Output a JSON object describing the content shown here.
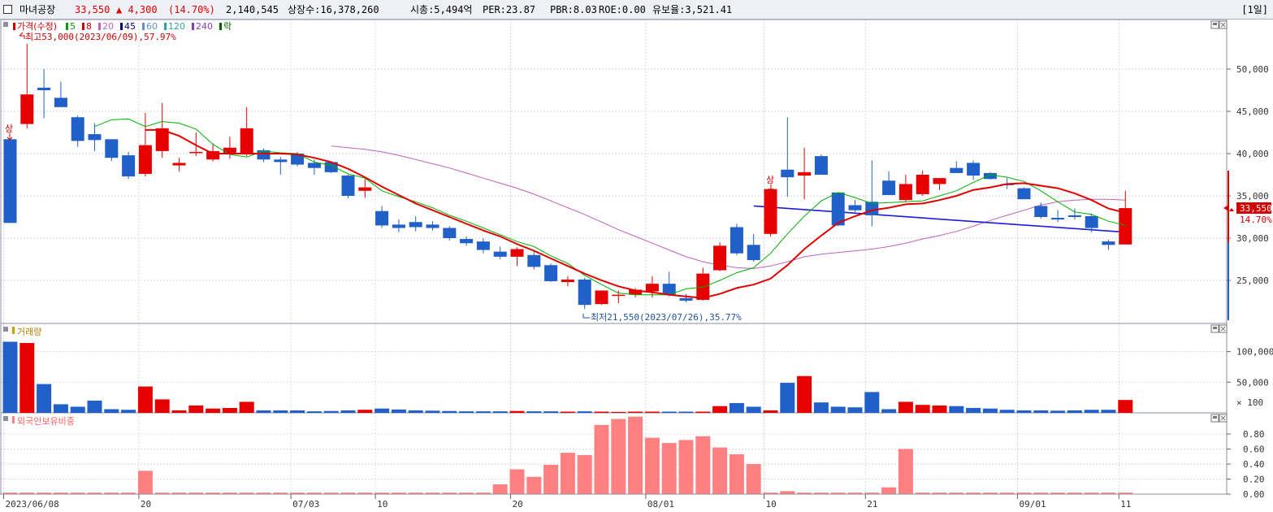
{
  "header": {
    "stock_name": "마녀공장",
    "price": "33,550",
    "change": "▲ 4,300",
    "change_pct": "(14.70%)",
    "volume": "2,140,545",
    "shares": "상장수:16,378,260",
    "market_cap": "시총:5,494억",
    "per": "PER:23.87",
    "pbr": "PBR:8.03",
    "roe": "ROE:0.00",
    "float": "유보율:3,521.41",
    "period": "[1일]"
  },
  "colors": {
    "up": "#e60000",
    "down": "#2060c8",
    "ma5": "#00b000",
    "ma20": "#e00000",
    "ma60": "#c060c0",
    "trend": "#1a1ae0",
    "foreign": "#ff8080",
    "grid": "#d8d8d8"
  },
  "price_panel": {
    "legend": [
      {
        "text": "가격(수정)",
        "color": "#cc0000",
        "marker": "#cc0000"
      },
      {
        "text": "5",
        "color": "#00a000",
        "marker": "#00a000"
      },
      {
        "text": "8",
        "color": "#cc0000",
        "marker": "#cc0000"
      },
      {
        "text": "20",
        "color": "#c060c0",
        "marker": "#c060c0"
      },
      {
        "text": "45",
        "color": "#000080",
        "marker": "#000080"
      },
      {
        "text": "60",
        "color": "#6090c0",
        "marker": "#6090c0"
      },
      {
        "text": "120",
        "color": "#30a0a0",
        "marker": "#30a0a0"
      },
      {
        "text": "240",
        "color": "#8040c0",
        "marker": "#8040c0"
      },
      {
        "text": "락",
        "color": "#006000",
        "marker": "#006000"
      }
    ],
    "high_note": "최고53,000(2023/06/09),57.97%",
    "low_note": "최저21,550(2023/07/26),35.77%",
    "limit_up_mark": "상",
    "price_tag": "33,550",
    "pct_tag": "14.70%",
    "y_ticks": [
      "50,000",
      "45,000",
      "40,000",
      "35,000",
      "30,000",
      "25,000"
    ]
  },
  "volume_panel": {
    "title": "거래량",
    "y_ticks": [
      "100,000",
      "50,000"
    ],
    "unit": "× 100"
  },
  "foreign_panel": {
    "title": "외국인보유비중",
    "y_ticks": [
      "0.80",
      "0.60",
      "0.40",
      "0.20",
      "0.00"
    ]
  },
  "x_axis": {
    "labels": [
      "2023/06/08",
      "20",
      "07/03",
      "10",
      "20",
      "08/01",
      "10",
      "21",
      "09/01",
      "11"
    ],
    "label_days": [
      0,
      8,
      17,
      22,
      30,
      38,
      45,
      51,
      60,
      66
    ]
  },
  "chart_data": {
    "type": "candlestick",
    "x": [
      "06/08",
      "06/09",
      "06/12",
      "06/13",
      "06/14",
      "06/15",
      "06/16",
      "06/19",
      "06/20",
      "06/21",
      "06/22",
      "06/23",
      "06/26",
      "06/27",
      "06/28",
      "06/29",
      "06/30",
      "07/03",
      "07/04",
      "07/05",
      "07/06",
      "07/07",
      "07/10",
      "07/11",
      "07/12",
      "07/13",
      "07/14",
      "07/17",
      "07/18",
      "07/19",
      "07/20",
      "07/21",
      "07/24",
      "07/25",
      "07/26",
      "07/27",
      "07/28",
      "07/31",
      "08/01",
      "08/02",
      "08/03",
      "08/04",
      "08/07",
      "08/08",
      "08/09",
      "08/10",
      "08/11",
      "08/14",
      "08/16",
      "08/17",
      "08/18",
      "08/21",
      "08/22",
      "08/23",
      "08/24",
      "08/25",
      "08/28",
      "08/29",
      "08/30",
      "08/31",
      "09/01",
      "09/04",
      "09/05",
      "09/06",
      "09/07",
      "09/08",
      "09/11"
    ],
    "ohlc": [
      [
        41.7,
        41.7,
        31.8,
        31.8
      ],
      [
        43.5,
        53.0,
        43.0,
        47.0
      ],
      [
        47.8,
        50.0,
        44.2,
        47.5
      ],
      [
        46.6,
        48.5,
        45.5,
        45.5
      ],
      [
        44.3,
        44.5,
        40.8,
        41.5
      ],
      [
        42.3,
        43.6,
        40.3,
        41.6
      ],
      [
        41.7,
        41.7,
        39.1,
        39.5
      ],
      [
        39.8,
        40.2,
        37.0,
        37.3
      ],
      [
        37.6,
        44.8,
        37.3,
        41.0
      ],
      [
        40.3,
        46.0,
        39.5,
        43.0
      ],
      [
        38.6,
        39.5,
        37.9,
        38.9
      ],
      [
        40.2,
        42.5,
        39.7,
        40.2
      ],
      [
        39.3,
        41.2,
        39.1,
        40.3
      ],
      [
        40.1,
        42.0,
        39.4,
        40.7
      ],
      [
        40.0,
        45.5,
        39.7,
        43.0
      ],
      [
        40.4,
        40.6,
        39.0,
        39.3
      ],
      [
        39.3,
        39.6,
        37.5,
        39.0
      ],
      [
        40.0,
        40.2,
        38.5,
        38.7
      ],
      [
        38.9,
        39.3,
        37.5,
        38.3
      ],
      [
        39.0,
        39.0,
        37.7,
        37.8
      ],
      [
        37.4,
        37.5,
        34.7,
        35.0
      ],
      [
        35.6,
        37.0,
        34.8,
        36.0
      ],
      [
        33.2,
        33.8,
        31.2,
        31.5
      ],
      [
        31.6,
        32.2,
        30.7,
        31.2
      ],
      [
        31.9,
        32.6,
        30.8,
        31.3
      ],
      [
        31.6,
        32.0,
        30.9,
        31.2
      ],
      [
        31.2,
        31.4,
        29.7,
        30.0
      ],
      [
        29.9,
        30.2,
        29.1,
        29.4
      ],
      [
        29.6,
        30.0,
        28.2,
        28.6
      ],
      [
        28.4,
        29.0,
        27.5,
        27.8
      ],
      [
        27.8,
        28.9,
        26.7,
        28.7
      ],
      [
        28.0,
        28.5,
        26.3,
        26.6
      ],
      [
        26.8,
        27.0,
        24.8,
        24.9
      ],
      [
        24.8,
        25.5,
        24.3,
        25.1
      ],
      [
        25.1,
        25.3,
        21.6,
        22.1
      ],
      [
        22.2,
        23.8,
        22.1,
        23.8
      ],
      [
        23.3,
        23.8,
        22.3,
        23.3
      ],
      [
        23.3,
        24.1,
        23.0,
        23.9
      ],
      [
        23.7,
        25.5,
        23.0,
        24.6
      ],
      [
        24.6,
        26.0,
        23.1,
        23.3
      ],
      [
        22.9,
        23.4,
        22.4,
        22.6
      ],
      [
        22.7,
        26.5,
        22.6,
        25.8
      ],
      [
        26.2,
        29.5,
        26.1,
        29.1
      ],
      [
        31.3,
        31.7,
        28.0,
        28.2
      ],
      [
        29.2,
        30.5,
        27.2,
        27.4
      ],
      [
        30.5,
        35.9,
        30.2,
        35.8
      ],
      [
        38.1,
        44.3,
        34.9,
        37.2
      ],
      [
        37.4,
        40.7,
        34.6,
        37.8
      ],
      [
        39.7,
        39.9,
        37.5,
        37.5
      ],
      [
        35.4,
        35.4,
        31.4,
        31.5
      ],
      [
        33.9,
        34.5,
        33.1,
        33.3
      ],
      [
        34.3,
        39.2,
        31.4,
        32.7
      ],
      [
        36.8,
        37.9,
        35.1,
        35.1
      ],
      [
        34.5,
        37.5,
        34.3,
        36.4
      ],
      [
        35.2,
        38.0,
        35.0,
        37.5
      ],
      [
        36.4,
        37.1,
        35.7,
        37.1
      ],
      [
        38.3,
        39.1,
        37.7,
        37.7
      ],
      [
        38.9,
        39.2,
        36.9,
        37.4
      ],
      [
        37.7,
        37.8,
        36.9,
        37.0
      ],
      [
        36.4,
        37.1,
        35.8,
        36.3
      ],
      [
        35.9,
        36.0,
        34.6,
        34.6
      ],
      [
        33.8,
        34.2,
        32.3,
        32.5
      ],
      [
        32.4,
        33.3,
        31.9,
        32.2
      ],
      [
        32.7,
        33.5,
        32.2,
        32.5
      ],
      [
        32.6,
        32.9,
        30.7,
        31.2
      ],
      [
        29.6,
        29.8,
        28.6,
        29.2
      ],
      [
        29.25,
        35.6,
        29.25,
        33.55
      ]
    ],
    "volume": [
      1160,
      1140,
      470,
      140,
      100,
      200,
      60,
      50,
      430,
      220,
      40,
      120,
      70,
      80,
      180,
      40,
      40,
      40,
      25,
      30,
      40,
      50,
      70,
      55,
      40,
      35,
      30,
      25,
      25,
      25,
      30,
      25,
      25,
      20,
      25,
      20,
      15,
      20,
      20,
      20,
      20,
      20,
      110,
      160,
      100,
      40,
      490,
      600,
      170,
      100,
      90,
      340,
      60,
      180,
      130,
      120,
      110,
      80,
      70,
      50,
      40,
      40,
      35,
      40,
      50,
      50,
      210
    ],
    "foreign_ratio": [
      0.02,
      0.02,
      0.02,
      0.02,
      0.02,
      0.02,
      0.02,
      0.02,
      0.31,
      0.02,
      0.02,
      0.02,
      0.02,
      0.02,
      0.02,
      0.02,
      0.02,
      0.02,
      0.02,
      0.02,
      0.02,
      0.02,
      0.02,
      0.02,
      0.02,
      0.02,
      0.02,
      0.02,
      0.02,
      0.13,
      0.33,
      0.23,
      0.39,
      0.55,
      0.52,
      0.92,
      1.0,
      1.03,
      0.75,
      0.68,
      0.72,
      0.77,
      0.62,
      0.53,
      0.4,
      0.02,
      0.04,
      0.02,
      0.02,
      0.02,
      0.02,
      0.02,
      0.09,
      0.6,
      0.02,
      0.02,
      0.02,
      0.02,
      0.02,
      0.02,
      0.02,
      0.02,
      0.02,
      0.02,
      0.02,
      0.02,
      0.02
    ],
    "ma5": [
      null,
      null,
      null,
      null,
      null,
      43.2,
      44.0,
      44.1,
      43.2,
      43.8,
      43.6,
      42.9,
      41.1,
      39.9,
      39.6,
      40.3,
      40.1,
      40.0,
      39.0,
      38.6,
      37.6,
      37.1,
      35.6,
      34.9,
      34.3,
      33.6,
      32.7,
      32.0,
      31.2,
      30.4,
      29.6,
      29.0,
      27.9,
      27.0,
      25.6,
      24.5,
      23.5,
      23.3,
      23.3,
      23.3,
      24.0,
      24.2,
      25.0,
      25.9,
      26.5,
      28.2,
      30.5,
      32.6,
      34.4,
      35.4,
      34.8,
      34.1,
      34.2,
      34.3,
      34.4,
      35.0,
      35.6,
      36.6,
      37.5,
      37.2,
      36.7,
      35.6,
      34.3,
      33.1,
      32.8,
      32.0,
      31.5
    ],
    "ma20": [
      null,
      null,
      null,
      null,
      null,
      null,
      null,
      null,
      null,
      null,
      null,
      null,
      null,
      null,
      null,
      null,
      null,
      null,
      null,
      40.9,
      40.7,
      40.5,
      40.2,
      39.8,
      39.3,
      38.8,
      38.3,
      37.7,
      37.1,
      36.5,
      35.9,
      35.2,
      34.4,
      33.6,
      32.8,
      31.9,
      31.0,
      30.2,
      29.4,
      28.6,
      27.8,
      27.2,
      26.8,
      26.5,
      26.4,
      26.7,
      27.2,
      27.8,
      28.1,
      28.3,
      28.5,
      28.7,
      29.0,
      29.4,
      29.9,
      30.3,
      30.8,
      31.4,
      32.1,
      32.7,
      33.3,
      33.9,
      34.3,
      34.5,
      34.6,
      34.6,
      34.5
    ],
    "ma8_red": [
      null,
      null,
      null,
      null,
      null,
      null,
      null,
      null,
      42.8,
      42.8,
      42.1,
      41.0,
      40.0,
      40.0,
      40.0,
      40.0,
      40.0,
      39.9,
      39.5,
      39.0,
      38.2,
      37.2,
      36.1,
      35.1,
      34.1,
      33.3,
      32.5,
      31.7,
      30.9,
      30.2,
      29.3,
      28.5,
      27.6,
      26.7,
      25.8,
      25.0,
      24.3,
      23.8,
      23.6,
      23.3,
      23.1,
      22.9,
      23.4,
      24.1,
      24.5,
      25.2,
      26.8,
      28.7,
      30.3,
      31.8,
      32.6,
      33.3,
      33.6,
      34.0,
      34.1,
      34.5,
      35.0,
      35.7,
      36.0,
      36.4,
      36.5,
      36.2,
      35.9,
      35.3,
      34.5,
      33.5,
      33.0
    ],
    "trend_line": [
      [
        44,
        33.8
      ],
      [
        66,
        30.7
      ]
    ]
  }
}
